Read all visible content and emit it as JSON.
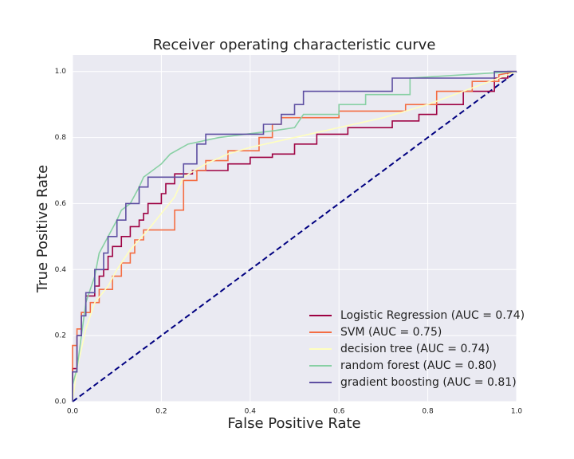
{
  "chart_data": {
    "type": "line",
    "title": "Receiver operating characteristic curve",
    "x_label": "False Positive Rate",
    "y_label": "True Positive Rate",
    "xlim": [
      0,
      1
    ],
    "ylim": [
      0,
      1.05
    ],
    "xticks": [
      {
        "value": 0,
        "label": "0.0"
      },
      0.2,
      0.4,
      0.6,
      0.8,
      {
        "value": 1,
        "label": "1.0"
      }
    ],
    "yticks": [
      {
        "value": 0,
        "label": "0.0"
      },
      0.2,
      0.4,
      0.6,
      0.8,
      {
        "value": 1,
        "label": "1.0"
      }
    ],
    "grid": true,
    "legend": "lower right",
    "reference_line": {
      "x": [
        0,
        1
      ],
      "values": [
        0,
        1
      ],
      "color": "#000080",
      "dashed": true
    },
    "series": [
      {
        "name": "Logistic Regression (AUC = 0.74)",
        "color": "#9e0142",
        "x": [
          0,
          0,
          0.01,
          0.01,
          0.02,
          0.02,
          0.03,
          0.03,
          0.05,
          0.05,
          0.06,
          0.06,
          0.07,
          0.07,
          0.08,
          0.08,
          0.09,
          0.09,
          0.11,
          0.11,
          0.13,
          0.13,
          0.15,
          0.15,
          0.16,
          0.16,
          0.17,
          0.17,
          0.2,
          0.2,
          0.21,
          0.21,
          0.23,
          0.23,
          0.27,
          0.27,
          0.35,
          0.35,
          0.4,
          0.4,
          0.45,
          0.45,
          0.5,
          0.5,
          0.55,
          0.55,
          0.62,
          0.62,
          0.72,
          0.72,
          0.78,
          0.78,
          0.82,
          0.82,
          0.88,
          0.88,
          0.95,
          0.95,
          0.98,
          0.98,
          1
        ],
        "values": [
          0,
          0.1,
          0.1,
          0.2,
          0.2,
          0.27,
          0.27,
          0.32,
          0.32,
          0.35,
          0.35,
          0.38,
          0.38,
          0.4,
          0.4,
          0.44,
          0.44,
          0.47,
          0.47,
          0.5,
          0.5,
          0.53,
          0.53,
          0.55,
          0.55,
          0.57,
          0.57,
          0.6,
          0.6,
          0.63,
          0.63,
          0.66,
          0.66,
          0.69,
          0.69,
          0.7,
          0.7,
          0.72,
          0.72,
          0.74,
          0.74,
          0.75,
          0.75,
          0.78,
          0.78,
          0.81,
          0.81,
          0.83,
          0.83,
          0.85,
          0.85,
          0.87,
          0.87,
          0.9,
          0.9,
          0.94,
          0.94,
          0.98,
          0.98,
          1,
          1
        ]
      },
      {
        "name": "SVM (AUC = 0.75)",
        "color": "#f46d43",
        "x": [
          0,
          0,
          0.01,
          0.01,
          0.02,
          0.02,
          0.04,
          0.04,
          0.06,
          0.06,
          0.09,
          0.09,
          0.11,
          0.11,
          0.13,
          0.13,
          0.14,
          0.14,
          0.16,
          0.16,
          0.23,
          0.23,
          0.25,
          0.25,
          0.28,
          0.28,
          0.3,
          0.3,
          0.35,
          0.35,
          0.42,
          0.42,
          0.45,
          0.45,
          0.47,
          0.47,
          0.6,
          0.6,
          0.75,
          0.75,
          0.82,
          0.82,
          0.9,
          0.9,
          0.96,
          0.96,
          1
        ],
        "values": [
          0,
          0.17,
          0.17,
          0.22,
          0.22,
          0.27,
          0.27,
          0.3,
          0.3,
          0.34,
          0.34,
          0.38,
          0.38,
          0.42,
          0.42,
          0.45,
          0.45,
          0.49,
          0.49,
          0.52,
          0.52,
          0.58,
          0.58,
          0.67,
          0.67,
          0.7,
          0.7,
          0.73,
          0.73,
          0.76,
          0.76,
          0.8,
          0.8,
          0.84,
          0.84,
          0.86,
          0.86,
          0.88,
          0.88,
          0.9,
          0.9,
          0.94,
          0.94,
          0.97,
          0.97,
          0.99,
          1
        ]
      },
      {
        "name": "decision tree (AUC = 0.74)",
        "color": "#ffffbf",
        "x": [
          0,
          0.01,
          0.03,
          0.05,
          0.08,
          0.1,
          0.13,
          0.17,
          0.2,
          0.23,
          0.25,
          0.3,
          0.35,
          0.4,
          0.5,
          0.6,
          0.7,
          0.8,
          0.9,
          1
        ],
        "values": [
          0,
          0.1,
          0.22,
          0.3,
          0.35,
          0.4,
          0.46,
          0.52,
          0.57,
          0.62,
          0.68,
          0.72,
          0.75,
          0.77,
          0.8,
          0.83,
          0.86,
          0.9,
          0.95,
          1
        ]
      },
      {
        "name": "random forest (AUC = 0.80)",
        "color": "#88d0a4",
        "x": [
          0,
          0,
          0.01,
          0.02,
          0.03,
          0.05,
          0.06,
          0.08,
          0.1,
          0.11,
          0.13,
          0.15,
          0.16,
          0.18,
          0.2,
          0.22,
          0.26,
          0.33,
          0.45,
          0.5,
          0.52,
          0.6,
          0.6,
          0.66,
          0.66,
          0.76,
          0.76,
          1
        ],
        "values": [
          0,
          0.05,
          0.1,
          0.2,
          0.3,
          0.38,
          0.45,
          0.5,
          0.55,
          0.58,
          0.6,
          0.65,
          0.68,
          0.7,
          0.72,
          0.75,
          0.78,
          0.8,
          0.82,
          0.83,
          0.87,
          0.87,
          0.9,
          0.9,
          0.93,
          0.93,
          0.98,
          1
        ]
      },
      {
        "name": "gradient boosting (AUC = 0.81)",
        "color": "#5e4fa2",
        "x": [
          0,
          0,
          0.01,
          0.01,
          0.02,
          0.02,
          0.03,
          0.03,
          0.05,
          0.05,
          0.07,
          0.07,
          0.08,
          0.08,
          0.1,
          0.1,
          0.12,
          0.12,
          0.15,
          0.15,
          0.17,
          0.17,
          0.25,
          0.25,
          0.28,
          0.28,
          0.3,
          0.3,
          0.43,
          0.43,
          0.47,
          0.47,
          0.5,
          0.5,
          0.52,
          0.52,
          0.72,
          0.72,
          0.95,
          0.95,
          1
        ],
        "values": [
          0,
          0.09,
          0.09,
          0.2,
          0.2,
          0.26,
          0.26,
          0.33,
          0.33,
          0.4,
          0.4,
          0.45,
          0.45,
          0.5,
          0.5,
          0.55,
          0.55,
          0.6,
          0.6,
          0.65,
          0.65,
          0.68,
          0.68,
          0.72,
          0.72,
          0.78,
          0.78,
          0.81,
          0.81,
          0.84,
          0.84,
          0.87,
          0.87,
          0.9,
          0.9,
          0.94,
          0.94,
          0.98,
          0.98,
          1,
          1
        ]
      }
    ]
  }
}
